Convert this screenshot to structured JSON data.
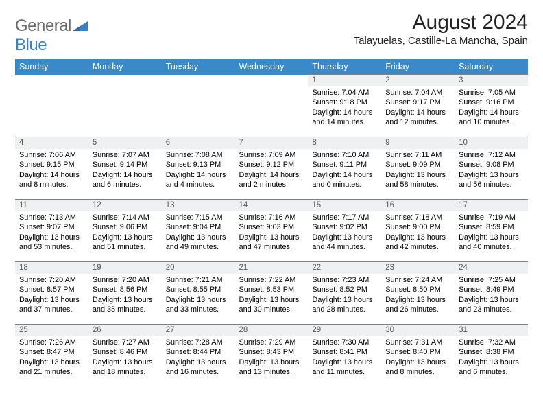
{
  "logo": {
    "general": "General",
    "blue": "Blue"
  },
  "header": {
    "title": "August 2024",
    "location": "Talayuelas, Castille-La Mancha, Spain"
  },
  "colors": {
    "header_bg": "#3a8ac9",
    "header_text": "#ffffff",
    "daynum_bg": "#eef0f1",
    "cell_border": "#7f7f7f",
    "logo_gray": "#6a6a6a",
    "logo_blue": "#3b7fc4"
  },
  "weekdays": [
    "Sunday",
    "Monday",
    "Tuesday",
    "Wednesday",
    "Thursday",
    "Friday",
    "Saturday"
  ],
  "weeks": [
    [
      {
        "blank": true
      },
      {
        "blank": true
      },
      {
        "blank": true
      },
      {
        "blank": true
      },
      {
        "day": "1",
        "sunrise": "Sunrise: 7:04 AM",
        "sunset": "Sunset: 9:18 PM",
        "daylight": "Daylight: 14 hours and 14 minutes."
      },
      {
        "day": "2",
        "sunrise": "Sunrise: 7:04 AM",
        "sunset": "Sunset: 9:17 PM",
        "daylight": "Daylight: 14 hours and 12 minutes."
      },
      {
        "day": "3",
        "sunrise": "Sunrise: 7:05 AM",
        "sunset": "Sunset: 9:16 PM",
        "daylight": "Daylight: 14 hours and 10 minutes."
      }
    ],
    [
      {
        "day": "4",
        "sunrise": "Sunrise: 7:06 AM",
        "sunset": "Sunset: 9:15 PM",
        "daylight": "Daylight: 14 hours and 8 minutes."
      },
      {
        "day": "5",
        "sunrise": "Sunrise: 7:07 AM",
        "sunset": "Sunset: 9:14 PM",
        "daylight": "Daylight: 14 hours and 6 minutes."
      },
      {
        "day": "6",
        "sunrise": "Sunrise: 7:08 AM",
        "sunset": "Sunset: 9:13 PM",
        "daylight": "Daylight: 14 hours and 4 minutes."
      },
      {
        "day": "7",
        "sunrise": "Sunrise: 7:09 AM",
        "sunset": "Sunset: 9:12 PM",
        "daylight": "Daylight: 14 hours and 2 minutes."
      },
      {
        "day": "8",
        "sunrise": "Sunrise: 7:10 AM",
        "sunset": "Sunset: 9:11 PM",
        "daylight": "Daylight: 14 hours and 0 minutes."
      },
      {
        "day": "9",
        "sunrise": "Sunrise: 7:11 AM",
        "sunset": "Sunset: 9:09 PM",
        "daylight": "Daylight: 13 hours and 58 minutes."
      },
      {
        "day": "10",
        "sunrise": "Sunrise: 7:12 AM",
        "sunset": "Sunset: 9:08 PM",
        "daylight": "Daylight: 13 hours and 56 minutes."
      }
    ],
    [
      {
        "day": "11",
        "sunrise": "Sunrise: 7:13 AM",
        "sunset": "Sunset: 9:07 PM",
        "daylight": "Daylight: 13 hours and 53 minutes."
      },
      {
        "day": "12",
        "sunrise": "Sunrise: 7:14 AM",
        "sunset": "Sunset: 9:06 PM",
        "daylight": "Daylight: 13 hours and 51 minutes."
      },
      {
        "day": "13",
        "sunrise": "Sunrise: 7:15 AM",
        "sunset": "Sunset: 9:04 PM",
        "daylight": "Daylight: 13 hours and 49 minutes."
      },
      {
        "day": "14",
        "sunrise": "Sunrise: 7:16 AM",
        "sunset": "Sunset: 9:03 PM",
        "daylight": "Daylight: 13 hours and 47 minutes."
      },
      {
        "day": "15",
        "sunrise": "Sunrise: 7:17 AM",
        "sunset": "Sunset: 9:02 PM",
        "daylight": "Daylight: 13 hours and 44 minutes."
      },
      {
        "day": "16",
        "sunrise": "Sunrise: 7:18 AM",
        "sunset": "Sunset: 9:00 PM",
        "daylight": "Daylight: 13 hours and 42 minutes."
      },
      {
        "day": "17",
        "sunrise": "Sunrise: 7:19 AM",
        "sunset": "Sunset: 8:59 PM",
        "daylight": "Daylight: 13 hours and 40 minutes."
      }
    ],
    [
      {
        "day": "18",
        "sunrise": "Sunrise: 7:20 AM",
        "sunset": "Sunset: 8:57 PM",
        "daylight": "Daylight: 13 hours and 37 minutes."
      },
      {
        "day": "19",
        "sunrise": "Sunrise: 7:20 AM",
        "sunset": "Sunset: 8:56 PM",
        "daylight": "Daylight: 13 hours and 35 minutes."
      },
      {
        "day": "20",
        "sunrise": "Sunrise: 7:21 AM",
        "sunset": "Sunset: 8:55 PM",
        "daylight": "Daylight: 13 hours and 33 minutes."
      },
      {
        "day": "21",
        "sunrise": "Sunrise: 7:22 AM",
        "sunset": "Sunset: 8:53 PM",
        "daylight": "Daylight: 13 hours and 30 minutes."
      },
      {
        "day": "22",
        "sunrise": "Sunrise: 7:23 AM",
        "sunset": "Sunset: 8:52 PM",
        "daylight": "Daylight: 13 hours and 28 minutes."
      },
      {
        "day": "23",
        "sunrise": "Sunrise: 7:24 AM",
        "sunset": "Sunset: 8:50 PM",
        "daylight": "Daylight: 13 hours and 26 minutes."
      },
      {
        "day": "24",
        "sunrise": "Sunrise: 7:25 AM",
        "sunset": "Sunset: 8:49 PM",
        "daylight": "Daylight: 13 hours and 23 minutes."
      }
    ],
    [
      {
        "day": "25",
        "sunrise": "Sunrise: 7:26 AM",
        "sunset": "Sunset: 8:47 PM",
        "daylight": "Daylight: 13 hours and 21 minutes."
      },
      {
        "day": "26",
        "sunrise": "Sunrise: 7:27 AM",
        "sunset": "Sunset: 8:46 PM",
        "daylight": "Daylight: 13 hours and 18 minutes."
      },
      {
        "day": "27",
        "sunrise": "Sunrise: 7:28 AM",
        "sunset": "Sunset: 8:44 PM",
        "daylight": "Daylight: 13 hours and 16 minutes."
      },
      {
        "day": "28",
        "sunrise": "Sunrise: 7:29 AM",
        "sunset": "Sunset: 8:43 PM",
        "daylight": "Daylight: 13 hours and 13 minutes."
      },
      {
        "day": "29",
        "sunrise": "Sunrise: 7:30 AM",
        "sunset": "Sunset: 8:41 PM",
        "daylight": "Daylight: 13 hours and 11 minutes."
      },
      {
        "day": "30",
        "sunrise": "Sunrise: 7:31 AM",
        "sunset": "Sunset: 8:40 PM",
        "daylight": "Daylight: 13 hours and 8 minutes."
      },
      {
        "day": "31",
        "sunrise": "Sunrise: 7:32 AM",
        "sunset": "Sunset: 8:38 PM",
        "daylight": "Daylight: 13 hours and 6 minutes."
      }
    ]
  ]
}
